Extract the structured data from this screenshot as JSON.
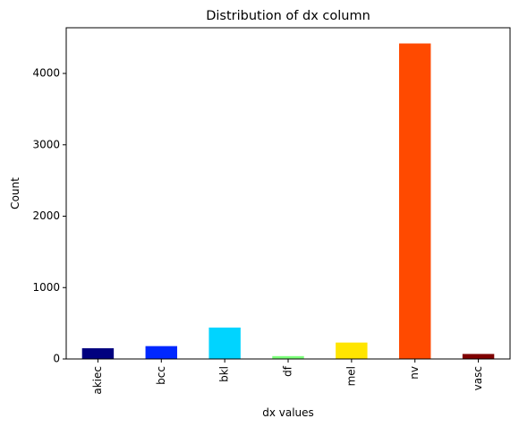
{
  "chart_data": {
    "type": "bar",
    "title": "Distribution of dx column",
    "xlabel": "dx values",
    "ylabel": "Count",
    "categories": [
      "akiec",
      "bcc",
      "bkl",
      "df",
      "mel",
      "nv",
      "vasc"
    ],
    "values": [
      150,
      180,
      440,
      40,
      230,
      4420,
      70
    ],
    "colors": [
      "#00007f",
      "#0028ff",
      "#00d4ff",
      "#7cff79",
      "#ffe500",
      "#ff4a00",
      "#7f0000"
    ],
    "ylim": [
      0,
      4640
    ],
    "yticks": [
      0,
      1000,
      2000,
      3000,
      4000
    ],
    "grid": false,
    "legend": "none"
  }
}
